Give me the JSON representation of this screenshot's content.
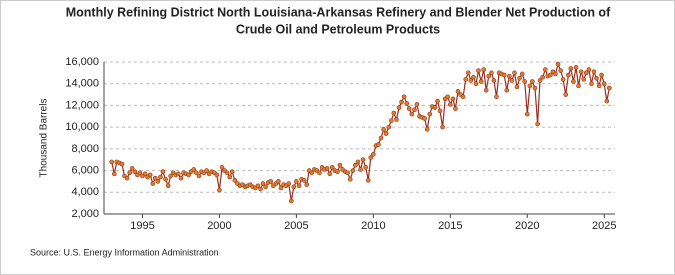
{
  "chart_data": {
    "type": "line",
    "title": [
      "Monthly Refining District North Louisiana-Arkansas Refinery and Blender Net Production of",
      "Crude Oil and Petroleum Products"
    ],
    "y_label": "Thousand Barrels",
    "source": "Source: U.S. Energy Information Administration",
    "xlim": [
      1992.5,
      2025.7
    ],
    "xticks": [
      1995,
      2000,
      2005,
      2010,
      2015,
      2020,
      2025
    ],
    "ylim": [
      2000,
      16000
    ],
    "yticks": [
      {
        "value": 2000,
        "label": "2,000"
      },
      {
        "value": 4000,
        "label": "4,000"
      },
      {
        "value": 6000,
        "label": "6,000"
      },
      {
        "value": 8000,
        "label": "8,000"
      },
      {
        "value": 10000,
        "label": "10,000"
      },
      {
        "value": 12000,
        "label": "12,000"
      },
      {
        "value": 14000,
        "label": "14,000"
      },
      {
        "value": 16000,
        "label": "16,000"
      }
    ],
    "grid": true,
    "x": [
      1993,
      1993.17,
      1993.33,
      1993.5,
      1993.67,
      1993.83,
      1994,
      1994.17,
      1994.33,
      1994.5,
      1994.67,
      1994.83,
      1995,
      1995.17,
      1995.33,
      1995.5,
      1995.67,
      1995.83,
      1996,
      1996.17,
      1996.33,
      1996.5,
      1996.67,
      1996.83,
      1997,
      1997.17,
      1997.33,
      1997.5,
      1997.67,
      1997.83,
      1998,
      1998.17,
      1998.33,
      1998.5,
      1998.67,
      1998.83,
      1999,
      1999.17,
      1999.33,
      1999.5,
      1999.67,
      1999.83,
      2000,
      2000.17,
      2000.33,
      2000.5,
      2000.67,
      2000.83,
      2001,
      2001.17,
      2001.33,
      2001.5,
      2001.67,
      2001.83,
      2002,
      2002.17,
      2002.33,
      2002.5,
      2002.67,
      2002.83,
      2003,
      2003.17,
      2003.33,
      2003.5,
      2003.67,
      2003.83,
      2004,
      2004.17,
      2004.33,
      2004.5,
      2004.67,
      2004.83,
      2005,
      2005.17,
      2005.33,
      2005.5,
      2005.67,
      2005.83,
      2006,
      2006.17,
      2006.33,
      2006.5,
      2006.67,
      2006.83,
      2007,
      2007.17,
      2007.33,
      2007.5,
      2007.67,
      2007.83,
      2008,
      2008.17,
      2008.33,
      2008.5,
      2008.67,
      2008.83,
      2009,
      2009.17,
      2009.33,
      2009.5,
      2009.67,
      2009.83,
      2010,
      2010.17,
      2010.33,
      2010.5,
      2010.67,
      2010.83,
      2011,
      2011.17,
      2011.33,
      2011.5,
      2011.67,
      2011.83,
      2012,
      2012.17,
      2012.33,
      2012.5,
      2012.67,
      2012.83,
      2013,
      2013.17,
      2013.33,
      2013.5,
      2013.67,
      2013.83,
      2014,
      2014.17,
      2014.33,
      2014.5,
      2014.67,
      2014.83,
      2015,
      2015.17,
      2015.33,
      2015.5,
      2015.67,
      2015.83,
      2016,
      2016.17,
      2016.33,
      2016.5,
      2016.67,
      2016.83,
      2017,
      2017.17,
      2017.33,
      2017.5,
      2017.67,
      2017.83,
      2018,
      2018.17,
      2018.33,
      2018.5,
      2018.67,
      2018.83,
      2019,
      2019.17,
      2019.33,
      2019.5,
      2019.67,
      2019.83,
      2020,
      2020.17,
      2020.33,
      2020.5,
      2020.67,
      2020.83,
      2021,
      2021.17,
      2021.33,
      2021.5,
      2021.67,
      2021.83,
      2022,
      2022.17,
      2022.33,
      2022.5,
      2022.67,
      2022.83,
      2023,
      2023.17,
      2023.33,
      2023.5,
      2023.67,
      2023.83,
      2024,
      2024.17,
      2024.33,
      2024.5,
      2024.67,
      2024.83,
      2025,
      2025.17,
      2025.33
    ],
    "series": [
      {
        "color": "#9b2d20",
        "marker_color": "#d9822b",
        "values": [
          6800,
          5700,
          6800,
          6700,
          6600,
          5500,
          5300,
          5800,
          6200,
          5900,
          5600,
          5800,
          5500,
          5700,
          5400,
          5600,
          4800,
          5300,
          5000,
          5400,
          5900,
          5200,
          4600,
          5500,
          5800,
          5600,
          5700,
          5300,
          5800,
          5700,
          5600,
          5900,
          6100,
          5800,
          5500,
          5900,
          5800,
          6000,
          5700,
          5900,
          5800,
          5600,
          4200,
          6300,
          6000,
          5800,
          5400,
          5900,
          5100,
          4800,
          4600,
          4700,
          4500,
          4600,
          4700,
          4500,
          4400,
          4600,
          4300,
          4800,
          4500,
          4900,
          5000,
          4600,
          4800,
          5000,
          4400,
          4700,
          4600,
          4800,
          3200,
          4500,
          5000,
          4600,
          5200,
          5100,
          4700,
          6000,
          5800,
          6100,
          6000,
          5800,
          6300,
          6100,
          6200,
          5700,
          6300,
          6000,
          5900,
          6500,
          6100,
          5900,
          5800,
          5200,
          6000,
          6500,
          6800,
          6100,
          7000,
          6300,
          5100,
          7200,
          7500,
          8300,
          8400,
          9000,
          9800,
          9400,
          10000,
          10600,
          11300,
          10700,
          11800,
          12300,
          12800,
          12200,
          11700,
          11200,
          11600,
          12100,
          11000,
          10900,
          10800,
          9800,
          11200,
          11900,
          11800,
          12400,
          11500,
          10000,
          12600,
          12800,
          12100,
          12600,
          11700,
          13300,
          13000,
          12800,
          14400,
          15000,
          14300,
          14600,
          14000,
          15200,
          14200,
          15300,
          13400,
          14700,
          15000,
          14300,
          12800,
          15000,
          14900,
          14800,
          13400,
          14700,
          14300,
          15000,
          13700,
          14500,
          14900,
          14200,
          11200,
          13800,
          14200,
          13600,
          10300,
          14300,
          14600,
          15300,
          14700,
          14800,
          15100,
          14900,
          15800,
          15200,
          14400,
          13000,
          14800,
          15400,
          14200,
          15500,
          13800,
          15100,
          14400,
          15000,
          15300,
          14000,
          15100,
          14500,
          13800,
          14800,
          14000,
          12400,
          13600
        ]
      }
    ]
  }
}
